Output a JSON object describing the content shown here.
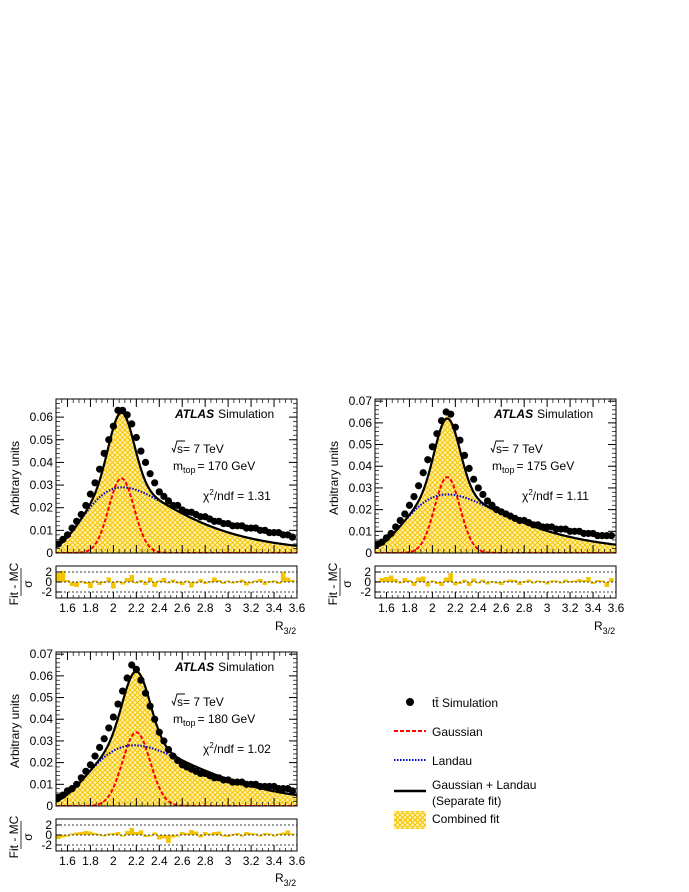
{
  "chart_data": [
    {
      "type": "scatter",
      "id": "p170",
      "title": "",
      "atlas_label": "ATLAS",
      "atlas_suffix": "Simulation",
      "energy": "s= 7 TeV",
      "mtop_label": "m",
      "mtop_sub": "top",
      "mtop_value": "= 170 GeV",
      "chi2_prefix": "χ",
      "chi2_sup": "2",
      "chi2_suffix": "/ndf = 1.31",
      "ylabel": "Arbitrary units",
      "xlabel": "R",
      "xlabel_sub": "3/2",
      "xlim": [
        1.5,
        3.6
      ],
      "ylim": [
        0,
        0.068
      ],
      "yticks": [
        0,
        0.01,
        0.02,
        0.03,
        0.04,
        0.05,
        0.06
      ],
      "ytick_labels": [
        "0",
        "0.01",
        "0.02",
        "0.03",
        "0.04",
        "0.05",
        "0.06"
      ],
      "xticks": [
        1.6,
        1.8,
        2.0,
        2.2,
        2.4,
        2.6,
        2.8,
        3.0,
        3.2,
        3.4,
        3.6
      ],
      "xtick_labels": [
        "1.6",
        "1.8",
        "2",
        "2.2",
        "2.4",
        "2.6",
        "2.8",
        "3",
        "3.2",
        "3.4",
        "3.6"
      ],
      "ratio_ylabel_top": "Fit - MC",
      "ratio_ylabel_bottom": "σ",
      "ratio_yticks": [
        2,
        0,
        -2
      ],
      "ratio_ytick_labels": [
        "2",
        "0",
        "-2"
      ],
      "series": [
        {
          "kind": "points",
          "x": [
            1.52,
            1.56,
            1.6,
            1.64,
            1.68,
            1.72,
            1.76,
            1.8,
            1.84,
            1.88,
            1.92,
            1.96,
            2.0,
            2.04,
            2.08,
            2.12,
            2.16,
            2.2,
            2.24,
            2.28,
            2.32,
            2.36,
            2.4,
            2.44,
            2.48,
            2.52,
            2.56,
            2.6,
            2.64,
            2.68,
            2.72,
            2.76,
            2.8,
            2.84,
            2.88,
            2.92,
            2.96,
            3.0,
            3.04,
            3.08,
            3.12,
            3.16,
            3.2,
            3.24,
            3.28,
            3.32,
            3.36,
            3.4,
            3.44,
            3.48,
            3.52,
            3.56
          ],
          "y": [
            0.004,
            0.006,
            0.008,
            0.011,
            0.014,
            0.017,
            0.021,
            0.026,
            0.031,
            0.037,
            0.044,
            0.05,
            0.056,
            0.063,
            0.063,
            0.061,
            0.057,
            0.051,
            0.045,
            0.04,
            0.035,
            0.031,
            0.027,
            0.025,
            0.023,
            0.021,
            0.021,
            0.019,
            0.018,
            0.018,
            0.017,
            0.016,
            0.016,
            0.015,
            0.014,
            0.014,
            0.013,
            0.013,
            0.012,
            0.012,
            0.012,
            0.011,
            0.011,
            0.011,
            0.01,
            0.01,
            0.009,
            0.009,
            0.009,
            0.008,
            0.008,
            0.007
          ]
        },
        {
          "kind": "gauss",
          "mean": 2.07,
          "sigma": 0.11,
          "amp": 0.033
        },
        {
          "kind": "landau",
          "peak": 2.08,
          "amp": 0.029,
          "width": 0.28
        },
        {
          "kind": "sum"
        },
        {
          "kind": "ratio",
          "values": [
            1.8,
            2.2,
            0.4,
            -0.8,
            -1.0,
            0.2,
            -0.4,
            -1.2,
            0.3,
            -0.6,
            0.1,
            0.9,
            -1.3,
            0.2,
            -0.5,
            0.8,
            1.4,
            -0.2,
            0.4,
            -0.6,
            0.9,
            -1.0,
            0.3,
            0.8,
            -0.3,
            0.5,
            -0.2,
            -0.6,
            0.3,
            -1.1,
            0.0,
            0.6,
            -0.4,
            0.2,
            0.9,
            0.4,
            -0.4,
            0.3,
            -0.3,
            0.2,
            0.5,
            -0.7,
            -0.2,
            0.3,
            0.6,
            -0.6,
            0.2,
            0.3,
            -0.4,
            2.0,
            0.9,
            0.4
          ]
        }
      ]
    },
    {
      "type": "scatter",
      "id": "p175",
      "title": "",
      "atlas_label": "ATLAS",
      "atlas_suffix": "Simulation",
      "energy": "s= 7 TeV",
      "mtop_label": "m",
      "mtop_sub": "top",
      "mtop_value": "= 175 GeV",
      "chi2_prefix": "χ",
      "chi2_sup": "2",
      "chi2_suffix": "/ndf = 1.11",
      "ylabel": "Arbitrary units",
      "xlabel": "R",
      "xlabel_sub": "3/2",
      "xlim": [
        1.5,
        3.6
      ],
      "ylim": [
        0,
        0.071
      ],
      "yticks": [
        0,
        0.01,
        0.02,
        0.03,
        0.04,
        0.05,
        0.06,
        0.07
      ],
      "ytick_labels": [
        "0",
        "0.01",
        "0.02",
        "0.03",
        "0.04",
        "0.05",
        "0.06",
        "0.07"
      ],
      "xticks": [
        1.6,
        1.8,
        2.0,
        2.2,
        2.4,
        2.6,
        2.8,
        3.0,
        3.2,
        3.4,
        3.6
      ],
      "xtick_labels": [
        "1.6",
        "1.8",
        "2",
        "2.2",
        "2.4",
        "2.6",
        "2.8",
        "3",
        "3.2",
        "3.4",
        "3.6"
      ],
      "ratio_ylabel_top": "Fit - MC",
      "ratio_ylabel_bottom": "σ",
      "ratio_yticks": [
        2,
        0,
        -2
      ],
      "ratio_ytick_labels": [
        "2",
        "0",
        "-2"
      ],
      "series": [
        {
          "kind": "points",
          "x": [
            1.52,
            1.56,
            1.6,
            1.64,
            1.68,
            1.72,
            1.76,
            1.8,
            1.84,
            1.88,
            1.92,
            1.96,
            2.0,
            2.04,
            2.08,
            2.12,
            2.16,
            2.2,
            2.24,
            2.28,
            2.32,
            2.36,
            2.4,
            2.44,
            2.48,
            2.52,
            2.56,
            2.6,
            2.64,
            2.68,
            2.72,
            2.76,
            2.8,
            2.84,
            2.88,
            2.92,
            2.96,
            3.0,
            3.04,
            3.08,
            3.12,
            3.16,
            3.2,
            3.24,
            3.28,
            3.32,
            3.36,
            3.4,
            3.44,
            3.48,
            3.52,
            3.56
          ],
          "y": [
            0.004,
            0.005,
            0.007,
            0.009,
            0.012,
            0.015,
            0.018,
            0.022,
            0.026,
            0.031,
            0.037,
            0.043,
            0.049,
            0.055,
            0.061,
            0.065,
            0.064,
            0.058,
            0.052,
            0.045,
            0.039,
            0.034,
            0.03,
            0.027,
            0.024,
            0.022,
            0.02,
            0.019,
            0.018,
            0.017,
            0.016,
            0.015,
            0.015,
            0.014,
            0.013,
            0.013,
            0.012,
            0.012,
            0.012,
            0.011,
            0.011,
            0.011,
            0.01,
            0.01,
            0.01,
            0.009,
            0.009,
            0.009,
            0.008,
            0.008,
            0.008,
            0.008
          ]
        },
        {
          "kind": "gauss",
          "mean": 2.13,
          "sigma": 0.11,
          "amp": 0.035
        },
        {
          "kind": "landau",
          "peak": 2.13,
          "amp": 0.027,
          "width": 0.3
        },
        {
          "kind": "sum"
        },
        {
          "kind": "ratio",
          "values": [
            0.2,
            0.8,
            1.0,
            1.3,
            0.6,
            -0.3,
            0.8,
            0.4,
            -0.8,
            0.9,
            1.1,
            -0.9,
            0.3,
            -0.4,
            -0.8,
            0.9,
            1.8,
            -0.7,
            -0.4,
            0.5,
            -0.8,
            0.7,
            -0.2,
            0.5,
            -0.5,
            0.2,
            -0.3,
            -0.6,
            0.3,
            0.5,
            0.4,
            -0.6,
            0.2,
            0.5,
            -0.3,
            0.3,
            0.2,
            -0.5,
            0.3,
            0.3,
            -0.3,
            0.5,
            0.2,
            0.3,
            0.6,
            0.4,
            1.0,
            -0.4,
            0.4,
            0.3,
            -1.0,
            0.8
          ]
        }
      ]
    },
    {
      "type": "scatter",
      "id": "p180",
      "title": "",
      "atlas_label": "ATLAS",
      "atlas_suffix": "Simulation",
      "energy": "s= 7 TeV",
      "mtop_label": "m",
      "mtop_sub": "top",
      "mtop_value": "= 180 GeV",
      "chi2_prefix": "χ",
      "chi2_sup": "2",
      "chi2_suffix": "/ndf = 1.02",
      "ylabel": "Arbitrary units",
      "xlabel": "R",
      "xlabel_sub": "3/2",
      "xlim": [
        1.5,
        3.6
      ],
      "ylim": [
        0,
        0.071
      ],
      "yticks": [
        0,
        0.01,
        0.02,
        0.03,
        0.04,
        0.05,
        0.06,
        0.07
      ],
      "ytick_labels": [
        "0",
        "0.01",
        "0.02",
        "0.03",
        "0.04",
        "0.05",
        "0.06",
        "0.07"
      ],
      "xticks": [
        1.6,
        1.8,
        2.0,
        2.2,
        2.4,
        2.6,
        2.8,
        3.0,
        3.2,
        3.4,
        3.6
      ],
      "xtick_labels": [
        "1.6",
        "1.8",
        "2",
        "2.2",
        "2.4",
        "2.6",
        "2.8",
        "3",
        "3.2",
        "3.4",
        "3.6"
      ],
      "ratio_ylabel_top": "Fit - MC",
      "ratio_ylabel_bottom": "σ",
      "ratio_yticks": [
        2,
        0,
        -2
      ],
      "ratio_ytick_labels": [
        "2",
        "0",
        "-2"
      ],
      "series": [
        {
          "kind": "points",
          "x": [
            1.52,
            1.56,
            1.6,
            1.64,
            1.68,
            1.72,
            1.76,
            1.8,
            1.84,
            1.88,
            1.92,
            1.96,
            2.0,
            2.04,
            2.08,
            2.12,
            2.16,
            2.2,
            2.24,
            2.28,
            2.32,
            2.36,
            2.4,
            2.44,
            2.48,
            2.52,
            2.56,
            2.6,
            2.64,
            2.68,
            2.72,
            2.76,
            2.8,
            2.84,
            2.88,
            2.92,
            2.96,
            3.0,
            3.04,
            3.08,
            3.12,
            3.16,
            3.2,
            3.24,
            3.28,
            3.32,
            3.36,
            3.4,
            3.44,
            3.48,
            3.52,
            3.56
          ],
          "y": [
            0.004,
            0.005,
            0.007,
            0.008,
            0.01,
            0.013,
            0.016,
            0.019,
            0.023,
            0.027,
            0.031,
            0.036,
            0.041,
            0.047,
            0.053,
            0.059,
            0.065,
            0.063,
            0.058,
            0.052,
            0.046,
            0.04,
            0.034,
            0.03,
            0.026,
            0.023,
            0.021,
            0.019,
            0.018,
            0.017,
            0.016,
            0.015,
            0.015,
            0.014,
            0.013,
            0.013,
            0.012,
            0.012,
            0.011,
            0.011,
            0.011,
            0.01,
            0.01,
            0.01,
            0.009,
            0.009,
            0.009,
            0.009,
            0.008,
            0.008,
            0.008,
            0.007
          ]
        },
        {
          "kind": "gauss",
          "mean": 2.2,
          "sigma": 0.12,
          "amp": 0.034
        },
        {
          "kind": "landau",
          "peak": 2.18,
          "amp": 0.028,
          "width": 0.32
        },
        {
          "kind": "sum"
        },
        {
          "kind": "ratio",
          "values": [
            -0.8,
            -0.5,
            -0.2,
            0.3,
            0.5,
            0.6,
            0.8,
            0.7,
            0.4,
            0.2,
            -0.3,
            0.3,
            0.4,
            0.6,
            -0.3,
            0.8,
            1.4,
            0.6,
            0.9,
            -0.4,
            -0.2,
            0.5,
            -0.9,
            -0.7,
            -1.6,
            -0.5,
            -0.2,
            0.6,
            0.4,
            1.0,
            0.7,
            -0.5,
            0.6,
            0.3,
            0.6,
            0.7,
            -0.3,
            -0.4,
            0.2,
            0.4,
            -0.2,
            0.6,
            0.4,
            0.3,
            -0.2,
            0.4,
            0.3,
            -0.1,
            0.3,
            0.5,
            0.9,
            0.3
          ]
        }
      ]
    }
  ],
  "legend": {
    "items": [
      {
        "key": "points",
        "label": "tt̄ Simulation"
      },
      {
        "key": "gauss",
        "label": "Gaussian"
      },
      {
        "key": "landau",
        "label": "Landau"
      },
      {
        "key": "sum",
        "label": "Gaussian + Landau",
        "label2": "(Separate fit)"
      },
      {
        "key": "combined",
        "label": "Combined fit"
      }
    ]
  },
  "colors": {
    "points": "#000000",
    "gauss": "#ff0000",
    "landau": "#0000cc",
    "sum": "#000000",
    "fill": "#f5c400",
    "fill_bg": "#fff2b0",
    "ratio": "#f5c400"
  }
}
